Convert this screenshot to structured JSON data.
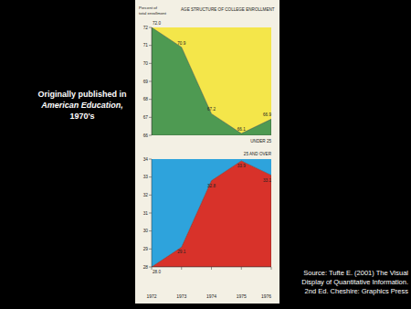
{
  "slide": {
    "caption": [
      "Originally published in",
      "American Education,",
      "1970's"
    ],
    "source": [
      "Source: Tufte E. (2001) The Visual",
      "Display of Quantitative Information.",
      "2nd Ed. Cheshire: Graphics Press"
    ]
  },
  "chart_data": [
    {
      "type": "area",
      "title": "AGE STRUCTURE OF COLLEGE ENROLLMENT",
      "ylabel": [
        "Percent of",
        "total enrollment"
      ],
      "categories": [
        "1972",
        "1973",
        "1974",
        "1975",
        "1976"
      ],
      "series": [
        {
          "name": "UNDER 25",
          "color": "#4e9a52",
          "values": [
            72.0,
            70.9,
            67.2,
            66.1,
            66.9
          ],
          "value_labels": [
            "72.0",
            "70.9",
            "67.2",
            "66.1",
            "66.9"
          ]
        }
      ],
      "color": "#f4e64a",
      "ylim": [
        66,
        72
      ],
      "yticks": [
        66,
        67,
        68,
        69,
        70,
        71,
        72
      ],
      "data_labels": true,
      "tick_labels": "y"
    },
    {
      "type": "area",
      "categories": [
        "1972",
        "1973",
        "1974",
        "1975",
        "1976"
      ],
      "series": [
        {
          "name": "25 AND OVER",
          "color": "#d8322a",
          "values": [
            28.0,
            29.1,
            32.8,
            33.9,
            33.1
          ],
          "value_labels": [
            "28.0",
            "29.1",
            "32.8",
            "33.9",
            "33.1"
          ]
        }
      ],
      "color": "#2ea3dc",
      "ylim": [
        28,
        34
      ],
      "yticks": [
        28,
        29,
        30,
        31,
        32,
        33,
        34
      ],
      "data_labels": true
    }
  ]
}
